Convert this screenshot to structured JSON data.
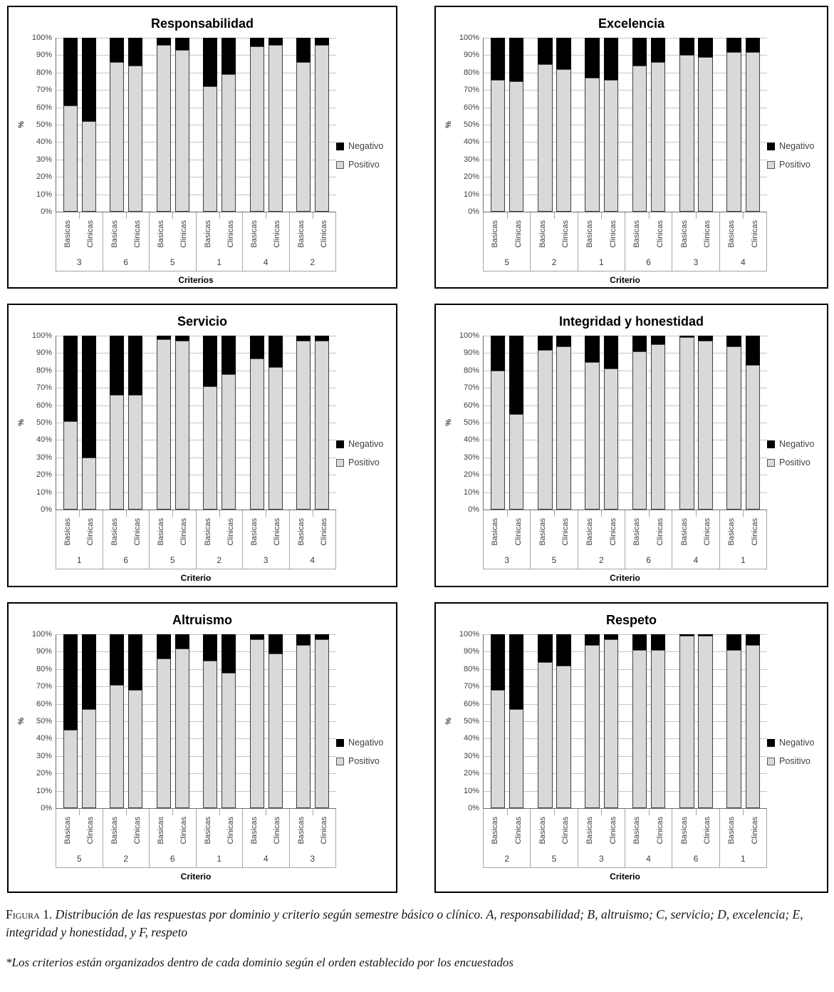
{
  "figure": {
    "caption_label": "Figura 1.",
    "caption_text": "Distribución de las respuestas por dominio y criterio según semestre básico o clínico. A, responsabilidad; B, altruismo; C, servicio; D, excelencia; E, integridad y honestidad, y F, respeto",
    "footnote": "*Los criterios están organizados dentro de cada dominio según el orden establecido por los encuestados"
  },
  "chart_data": [
    {
      "type": "bar",
      "stacked": "100%",
      "title": "Responsabilidad",
      "xlabel": "Criterios",
      "ylabel": "%",
      "ylim": [
        0,
        100
      ],
      "y_ticks": [
        "100%",
        "90%",
        "80%",
        "70%",
        "60%",
        "50%",
        "40%",
        "30%",
        "20%",
        "10%",
        "0%"
      ],
      "legend": [
        "Negativo",
        "Positivo"
      ],
      "legend_position": "right",
      "colors": {
        "Negativo": "#000000",
        "Positivo": "#d9d9d9"
      },
      "criteria": [
        "3",
        "6",
        "5",
        "1",
        "4",
        "2"
      ],
      "bars_per_criterion": [
        "Basicas",
        "Clinicas"
      ],
      "series": [
        {
          "name": "Positivo",
          "values_pct": [
            [
              61,
              52
            ],
            [
              86,
              84
            ],
            [
              96,
              93
            ],
            [
              72,
              79
            ],
            [
              95,
              96
            ],
            [
              86,
              96
            ]
          ]
        },
        {
          "name": "Negativo",
          "values_pct": [
            [
              39,
              48
            ],
            [
              14,
              16
            ],
            [
              4,
              7
            ],
            [
              28,
              21
            ],
            [
              5,
              4
            ],
            [
              14,
              4
            ]
          ]
        }
      ]
    },
    {
      "type": "bar",
      "stacked": "100%",
      "title": "Excelencia",
      "xlabel": "Criterio",
      "ylabel": "%",
      "ylim": [
        0,
        100
      ],
      "y_ticks": [
        "100%",
        "90%",
        "80%",
        "70%",
        "60%",
        "50%",
        "40%",
        "30%",
        "20%",
        "10%",
        "0%"
      ],
      "legend": [
        "Negativo",
        "Positivo"
      ],
      "legend_position": "right",
      "colors": {
        "Negativo": "#000000",
        "Positivo": "#d9d9d9"
      },
      "criteria": [
        "5",
        "2",
        "1",
        "6",
        "3",
        "4"
      ],
      "bars_per_criterion": [
        "Basicas",
        "Clinicas"
      ],
      "series": [
        {
          "name": "Positivo",
          "values_pct": [
            [
              76,
              75
            ],
            [
              85,
              82
            ],
            [
              77,
              76
            ],
            [
              84,
              86
            ],
            [
              90,
              89
            ],
            [
              92,
              92
            ]
          ]
        },
        {
          "name": "Negativo",
          "values_pct": [
            [
              24,
              25
            ],
            [
              15,
              18
            ],
            [
              23,
              24
            ],
            [
              16,
              14
            ],
            [
              10,
              11
            ],
            [
              8,
              8
            ]
          ]
        }
      ]
    },
    {
      "type": "bar",
      "stacked": "100%",
      "title": "Servicio",
      "xlabel": "Criterio",
      "ylabel": "%",
      "ylim": [
        0,
        100
      ],
      "y_ticks": [
        "100%",
        "90%",
        "80%",
        "70%",
        "60%",
        "50%",
        "40%",
        "30%",
        "20%",
        "10%",
        "0%"
      ],
      "legend": [
        "Negativo",
        "Positivo"
      ],
      "legend_position": "right",
      "colors": {
        "Negativo": "#000000",
        "Positivo": "#d9d9d9"
      },
      "criteria": [
        "1",
        "6",
        "5",
        "2",
        "3",
        "4"
      ],
      "bars_per_criterion": [
        "Basicas",
        "Clinicas"
      ],
      "series": [
        {
          "name": "Positivo",
          "values_pct": [
            [
              51,
              30
            ],
            [
              66,
              66
            ],
            [
              98,
              97
            ],
            [
              71,
              78
            ],
            [
              87,
              82
            ],
            [
              97,
              97
            ]
          ]
        },
        {
          "name": "Negativo",
          "values_pct": [
            [
              49,
              70
            ],
            [
              34,
              34
            ],
            [
              2,
              3
            ],
            [
              29,
              22
            ],
            [
              13,
              18
            ],
            [
              3,
              3
            ]
          ]
        }
      ]
    },
    {
      "type": "bar",
      "stacked": "100%",
      "title": "Integridad y honestidad",
      "xlabel": "Criterio",
      "ylabel": "%",
      "ylim": [
        0,
        100
      ],
      "y_ticks": [
        "100%",
        "90%",
        "80%",
        "70%",
        "60%",
        "50%",
        "40%",
        "30%",
        "20%",
        "10%",
        "0%"
      ],
      "legend": [
        "Negativo",
        "Positivo"
      ],
      "legend_position": "right",
      "colors": {
        "Negativo": "#000000",
        "Positivo": "#d9d9d9"
      },
      "criteria": [
        "3",
        "5",
        "2",
        "6",
        "4",
        "1"
      ],
      "bars_per_criterion": [
        "Basicas",
        "Clinicas"
      ],
      "series": [
        {
          "name": "Positivo",
          "values_pct": [
            [
              80,
              55
            ],
            [
              92,
              94
            ],
            [
              85,
              81
            ],
            [
              91,
              95
            ],
            [
              99,
              97
            ],
            [
              94,
              83
            ]
          ]
        },
        {
          "name": "Negativo",
          "values_pct": [
            [
              20,
              45
            ],
            [
              8,
              6
            ],
            [
              15,
              19
            ],
            [
              9,
              5
            ],
            [
              1,
              3
            ],
            [
              6,
              17
            ]
          ]
        }
      ]
    },
    {
      "type": "bar",
      "stacked": "100%",
      "title": "Altruismo",
      "xlabel": "Criterio",
      "ylabel": "%",
      "ylim": [
        0,
        100
      ],
      "y_ticks": [
        "100%",
        "90%",
        "80%",
        "70%",
        "60%",
        "50%",
        "40%",
        "30%",
        "20%",
        "10%",
        "0%"
      ],
      "legend": [
        "Negativo",
        "Positivo"
      ],
      "legend_position": "right",
      "colors": {
        "Negativo": "#000000",
        "Positivo": "#d9d9d9"
      },
      "criteria": [
        "5",
        "2",
        "6",
        "1",
        "4",
        "3"
      ],
      "bars_per_criterion": [
        "Basicas",
        "Clinicas"
      ],
      "series": [
        {
          "name": "Positivo",
          "values_pct": [
            [
              45,
              57
            ],
            [
              71,
              68
            ],
            [
              86,
              92
            ],
            [
              85,
              78
            ],
            [
              97,
              89
            ],
            [
              94,
              97
            ]
          ]
        },
        {
          "name": "Negativo",
          "values_pct": [
            [
              55,
              43
            ],
            [
              29,
              32
            ],
            [
              14,
              8
            ],
            [
              15,
              22
            ],
            [
              3,
              11
            ],
            [
              6,
              3
            ]
          ]
        }
      ]
    },
    {
      "type": "bar",
      "stacked": "100%",
      "title": "Respeto",
      "xlabel": "Criterio",
      "ylabel": "%",
      "ylim": [
        0,
        100
      ],
      "y_ticks": [
        "100%",
        "90%",
        "80%",
        "70%",
        "60%",
        "50%",
        "40%",
        "30%",
        "20%",
        "10%",
        "0%"
      ],
      "legend": [
        "Negativo",
        "Positivo"
      ],
      "legend_position": "right",
      "colors": {
        "Negativo": "#000000",
        "Positivo": "#d9d9d9"
      },
      "criteria": [
        "2",
        "5",
        "3",
        "4",
        "6",
        "1"
      ],
      "bars_per_criterion": [
        "Basicas",
        "Clinicas"
      ],
      "series": [
        {
          "name": "Positivo",
          "values_pct": [
            [
              68,
              57
            ],
            [
              84,
              82
            ],
            [
              94,
              97
            ],
            [
              91,
              91
            ],
            [
              99,
              99
            ],
            [
              91,
              94
            ]
          ]
        },
        {
          "name": "Negativo",
          "values_pct": [
            [
              32,
              43
            ],
            [
              16,
              18
            ],
            [
              6,
              3
            ],
            [
              9,
              9
            ],
            [
              1,
              1
            ],
            [
              9,
              6
            ]
          ]
        }
      ]
    }
  ]
}
